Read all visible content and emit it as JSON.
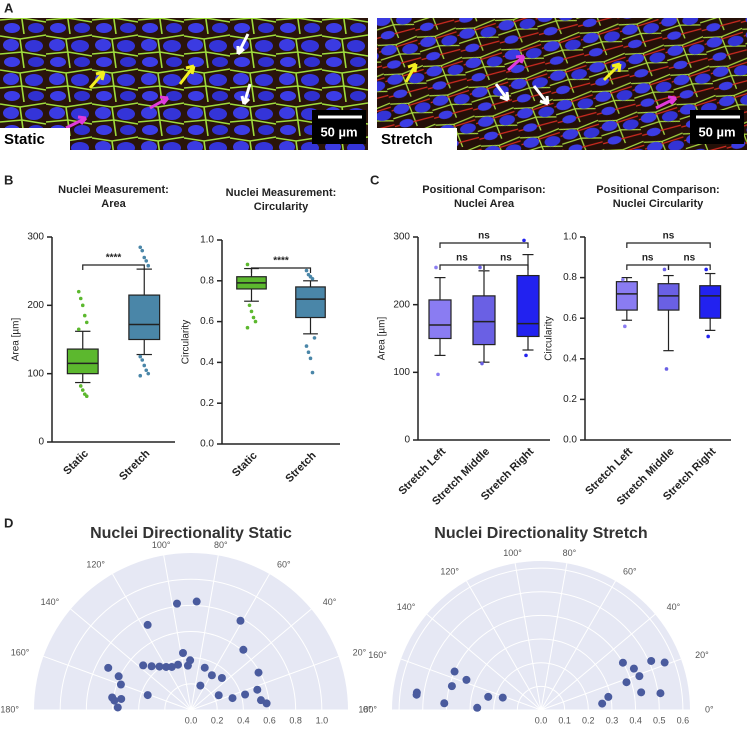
{
  "panel_labels": [
    "A",
    "B",
    "C",
    "D"
  ],
  "images": [
    {
      "label": "Static",
      "scale_bar": "50 µm"
    },
    {
      "label": "Stretch",
      "scale_bar": "50 µm"
    }
  ],
  "chart_data": [
    {
      "type": "box",
      "title": [
        "Nuclei Measurement:",
        "Area"
      ],
      "ylabel": "Area [µm]",
      "categories": [
        "Static",
        "Stretch"
      ],
      "colors": [
        "#5cb82e",
        "#4a86a8"
      ],
      "whisker_low": [
        87,
        128
      ],
      "q1": [
        100,
        150
      ],
      "median": [
        115,
        172
      ],
      "q3": [
        136,
        215
      ],
      "whisker_high": [
        162,
        253
      ],
      "outliers": [
        [
          220,
          210,
          200,
          185,
          175,
          165,
          82,
          76,
          70,
          67
        ],
        [
          285,
          280,
          270,
          265,
          258,
          125,
          120,
          112,
          105,
          100,
          97
        ]
      ],
      "ylim": [
        0,
        300
      ],
      "yticks": [
        0,
        100,
        200,
        300
      ],
      "annotations": [
        {
          "from": 0,
          "to": 1,
          "label": "****"
        }
      ]
    },
    {
      "type": "box",
      "title": [
        "Nuclei Measurement:",
        "Circularity"
      ],
      "ylabel": "Circularity",
      "categories": [
        "Static",
        "Stretch"
      ],
      "colors": [
        "#5cb82e",
        "#4a86a8"
      ],
      "whisker_low": [
        0.7,
        0.54
      ],
      "q1": [
        0.76,
        0.62
      ],
      "median": [
        0.79,
        0.71
      ],
      "q3": [
        0.82,
        0.77
      ],
      "whisker_high": [
        0.86,
        0.8
      ],
      "outliers": [
        [
          0.88,
          0.68,
          0.65,
          0.62,
          0.6,
          0.57
        ],
        [
          0.85,
          0.83,
          0.82,
          0.81,
          0.52,
          0.48,
          0.45,
          0.42,
          0.35
        ]
      ],
      "ylim": [
        0,
        1
      ],
      "yticks": [
        {
          "value": 0,
          "label": "0.0"
        },
        0.2,
        0.4,
        0.6,
        0.8,
        {
          "value": 1,
          "label": "1.0"
        }
      ],
      "annotations": [
        {
          "from": 0,
          "to": 1,
          "label": "****"
        }
      ]
    },
    {
      "type": "box",
      "title": [
        "Positional Comparison:",
        "Nuclei Area"
      ],
      "ylabel": "Area [µm]",
      "categories": [
        "Stretch Left",
        "Stretch Middle",
        "Stretch Right"
      ],
      "colors": [
        "#8a7cf2",
        "#6a60e4",
        "#2222f0"
      ],
      "whisker_low": [
        125,
        115,
        133
      ],
      "q1": [
        150,
        141,
        153
      ],
      "median": [
        170,
        175,
        172
      ],
      "q3": [
        207,
        213,
        243
      ],
      "whisker_high": [
        240,
        250,
        274
      ],
      "outliers": [
        [
          255,
          97
        ],
        [
          255,
          113
        ],
        [
          295,
          125
        ]
      ],
      "ylim": [
        0,
        300
      ],
      "yticks": [
        0,
        100,
        200,
        300
      ],
      "annotations": [
        {
          "from": 0,
          "to": 1,
          "label": "ns"
        },
        {
          "from": 1,
          "to": 2,
          "label": "ns"
        },
        {
          "from": 0,
          "to": 2,
          "label": "ns"
        }
      ]
    },
    {
      "type": "box",
      "title": [
        "Positional Comparison:",
        "Nuclei Circularity"
      ],
      "ylabel": "Circularity",
      "categories": [
        "Stretch Left",
        "Stretch Middle",
        "Stretch Right"
      ],
      "colors": [
        "#8a7cf2",
        "#6a60e4",
        "#2222f0"
      ],
      "whisker_low": [
        0.59,
        0.44,
        0.54
      ],
      "q1": [
        0.64,
        0.64,
        0.6
      ],
      "median": [
        0.72,
        0.71,
        0.71
      ],
      "q3": [
        0.78,
        0.77,
        0.76
      ],
      "whisker_high": [
        0.8,
        0.81,
        0.82
      ],
      "outliers": [
        [
          0.79,
          0.56
        ],
        [
          0.84,
          0.35
        ],
        [
          0.84,
          0.51
        ]
      ],
      "ylim": [
        0,
        1
      ],
      "yticks": [
        {
          "value": 0,
          "label": "0.0"
        },
        0.2,
        0.4,
        0.6,
        0.8,
        {
          "value": 1,
          "label": "1.0"
        }
      ],
      "annotations": [
        {
          "from": 0,
          "to": 1,
          "label": "ns"
        },
        {
          "from": 1,
          "to": 2,
          "label": "ns"
        },
        {
          "from": 0,
          "to": 2,
          "label": "ns"
        }
      ]
    },
    {
      "type": "polar-scatter",
      "title": "Nuclei Directionality Static",
      "color": "#4a5b9e",
      "theta": [
        97.5,
        87,
        117,
        61,
        49,
        153,
        155,
        160,
        171,
        173,
        171,
        178,
        161,
        137,
        132,
        126,
        120,
        114,
        106,
        94,
        91,
        98,
        72,
        59,
        46,
        16,
        28,
        69,
        29,
        17,
        8,
        5,
        16
      ],
      "r": [
        0.82,
        0.83,
        0.73,
        0.78,
        0.61,
        0.71,
        0.61,
        0.57,
        0.61,
        0.59,
        0.54,
        0.56,
        0.35,
        0.5,
        0.45,
        0.41,
        0.38,
        0.36,
        0.36,
        0.34,
        0.38,
        0.44,
        0.34,
        0.31,
        0.34,
        0.33,
        0.24,
        0.2,
        0.59,
        0.53,
        0.54,
        0.58,
        0.43
      ],
      "rlim": [
        0,
        1.2
      ],
      "rticks": [
        {
          "value": 0,
          "label": "0.0"
        },
        0.2,
        0.4,
        0.6,
        0.8,
        {
          "value": 1,
          "label": "1.0"
        }
      ],
      "thetaticks": [
        {
          "value": 0,
          "label": "0°"
        },
        {
          "value": 20,
          "label": "20°"
        },
        {
          "value": 40,
          "label": "40°"
        },
        {
          "value": 60,
          "label": "60°"
        },
        {
          "value": 80,
          "label": "80°"
        },
        {
          "value": 100,
          "label": "100°"
        },
        {
          "value": 120,
          "label": "120°"
        },
        {
          "value": 140,
          "label": "140°"
        },
        {
          "value": 160,
          "label": "160°"
        },
        {
          "value": 180,
          "label": "180°"
        }
      ]
    },
    {
      "type": "polar-scatter",
      "title": "Nuclei Directionality Stretch",
      "color": "#4a5b9e",
      "theta": [
        172,
        173,
        176,
        156,
        165,
        158,
        178,
        166,
        162,
        30,
        24,
        24,
        21,
        18,
        19,
        8,
        11,
        6,
        10
      ],
      "r": [
        0.53,
        0.53,
        0.41,
        0.4,
        0.39,
        0.34,
        0.27,
        0.23,
        0.17,
        0.4,
        0.43,
        0.51,
        0.56,
        0.38,
        0.44,
        0.51,
        0.29,
        0.26,
        0.43
      ],
      "rlim": [
        0,
        0.63
      ],
      "rticks": [
        {
          "value": 0,
          "label": "0.0"
        },
        0.1,
        0.2,
        0.3,
        0.4,
        0.5,
        0.6
      ],
      "thetaticks": [
        {
          "value": 0,
          "label": "0°"
        },
        {
          "value": 20,
          "label": "20°"
        },
        {
          "value": 40,
          "label": "40°"
        },
        {
          "value": 60,
          "label": "60°"
        },
        {
          "value": 80,
          "label": "80°"
        },
        {
          "value": 100,
          "label": "100°"
        },
        {
          "value": 120,
          "label": "120°"
        },
        {
          "value": 140,
          "label": "140°"
        },
        {
          "value": 160,
          "label": "160°"
        },
        {
          "value": 180,
          "label": "180°"
        }
      ]
    }
  ]
}
